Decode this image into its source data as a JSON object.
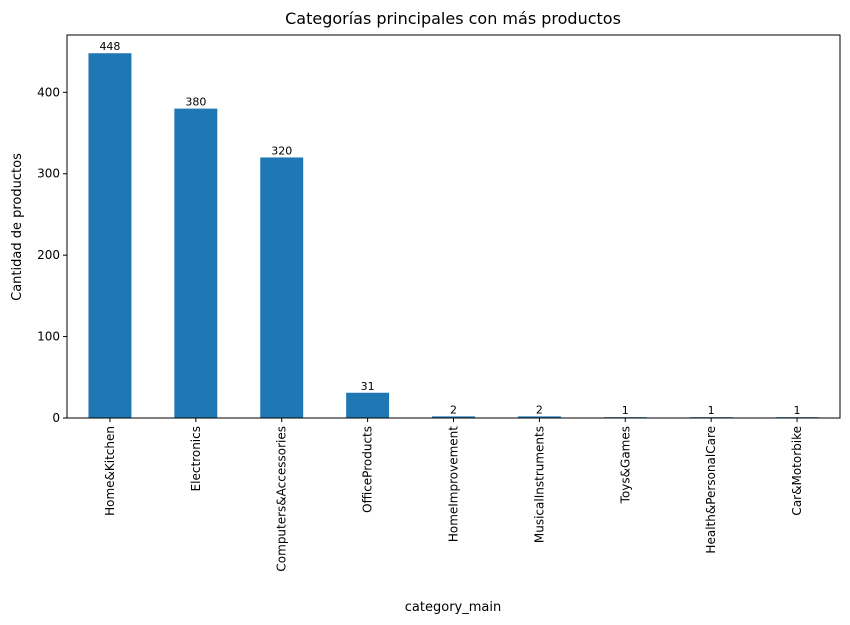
{
  "chart_data": {
    "type": "bar",
    "title": "Categorías principales con más productos",
    "xlabel": "category_main",
    "ylabel": "Cantidad de productos",
    "categories": [
      "Home&Kitchen",
      "Electronics",
      "Computers&Accessories",
      "OfficeProducts",
      "HomeImprovement",
      "MusicalInstruments",
      "Toys&Games",
      "Health&PersonalCare",
      "Car&Motorbike"
    ],
    "values": [
      448,
      380,
      320,
      31,
      2,
      2,
      1,
      1,
      1
    ],
    "ylim": [
      0,
      470.4
    ],
    "yticks": [
      0,
      100,
      200,
      300,
      400
    ],
    "bar_color": "#1f77b4",
    "grid": false,
    "legend": "none",
    "data_labels": true
  }
}
